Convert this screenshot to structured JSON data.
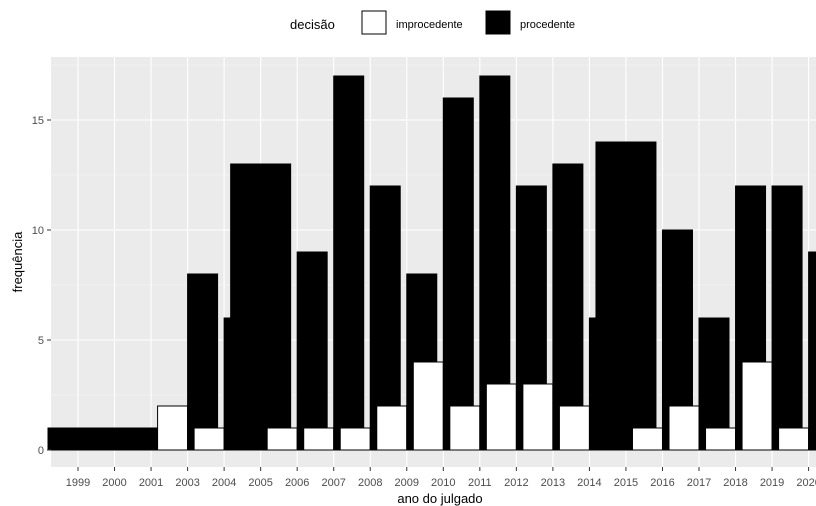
{
  "chart_data": {
    "type": "bar",
    "title": "",
    "xlabel": "ano do julgado",
    "ylabel": "frequência",
    "ylim": [
      0,
      17.5
    ],
    "yticks": [
      0,
      5,
      10,
      15
    ],
    "grid": true,
    "legend": {
      "title": "decisão",
      "position": "top",
      "entries": [
        {
          "label": "improcedente",
          "fill": "#ffffff"
        },
        {
          "label": "procedente",
          "fill": "#000000"
        }
      ]
    },
    "groups": [
      {
        "year": "1999",
        "bars": [
          {
            "series": "procedente",
            "value": 1
          }
        ]
      },
      {
        "year": "2000",
        "bars": [
          {
            "series": "procedente",
            "value": 1
          }
        ]
      },
      {
        "year": "2001",
        "bars": [
          {
            "series": "procedente",
            "value": 1
          }
        ]
      },
      {
        "year": "2003",
        "bars": [
          {
            "series": "improcedente",
            "value": 2
          },
          {
            "series": "procedente",
            "value": 8
          }
        ]
      },
      {
        "year": "2004",
        "bars": [
          {
            "series": "improcedente",
            "value": 1
          },
          {
            "series": "procedente",
            "value": 6
          }
        ]
      },
      {
        "year": "2005",
        "bars": [
          {
            "series": "procedente",
            "value": 13
          }
        ]
      },
      {
        "year": "2006",
        "bars": [
          {
            "series": "improcedente",
            "value": 1
          },
          {
            "series": "procedente",
            "value": 9
          }
        ]
      },
      {
        "year": "2007",
        "bars": [
          {
            "series": "improcedente",
            "value": 1
          },
          {
            "series": "procedente",
            "value": 17
          }
        ]
      },
      {
        "year": "2008",
        "bars": [
          {
            "series": "improcedente",
            "value": 1
          },
          {
            "series": "procedente",
            "value": 12
          }
        ]
      },
      {
        "year": "2009",
        "bars": [
          {
            "series": "improcedente",
            "value": 2
          },
          {
            "series": "procedente",
            "value": 8
          }
        ]
      },
      {
        "year": "2010",
        "bars": [
          {
            "series": "improcedente",
            "value": 4
          },
          {
            "series": "procedente",
            "value": 16
          }
        ]
      },
      {
        "year": "2011",
        "bars": [
          {
            "series": "improcedente",
            "value": 2
          },
          {
            "series": "procedente",
            "value": 17
          }
        ]
      },
      {
        "year": "2012",
        "bars": [
          {
            "series": "improcedente",
            "value": 3
          },
          {
            "series": "procedente",
            "value": 12
          }
        ]
      },
      {
        "year": "2013",
        "bars": [
          {
            "series": "improcedente",
            "value": 3
          },
          {
            "series": "procedente",
            "value": 13
          }
        ]
      },
      {
        "year": "2014",
        "bars": [
          {
            "series": "improcedente",
            "value": 2
          },
          {
            "series": "procedente",
            "value": 6
          }
        ]
      },
      {
        "year": "2015",
        "bars": [
          {
            "series": "procedente",
            "value": 14
          }
        ]
      },
      {
        "year": "2016",
        "bars": [
          {
            "series": "improcedente",
            "value": 1
          },
          {
            "series": "procedente",
            "value": 10
          }
        ]
      },
      {
        "year": "2017",
        "bars": [
          {
            "series": "improcedente",
            "value": 2
          },
          {
            "series": "procedente",
            "value": 6
          }
        ]
      },
      {
        "year": "2018",
        "bars": [
          {
            "series": "improcedente",
            "value": 1
          },
          {
            "series": "procedente",
            "value": 12
          }
        ]
      },
      {
        "year": "2019",
        "bars": [
          {
            "series": "improcedente",
            "value": 4
          },
          {
            "series": "procedente",
            "value": 12
          }
        ]
      },
      {
        "year": "2020",
        "bars": [
          {
            "series": "improcedente",
            "value": 1
          },
          {
            "series": "procedente",
            "value": 9
          }
        ]
      }
    ]
  }
}
